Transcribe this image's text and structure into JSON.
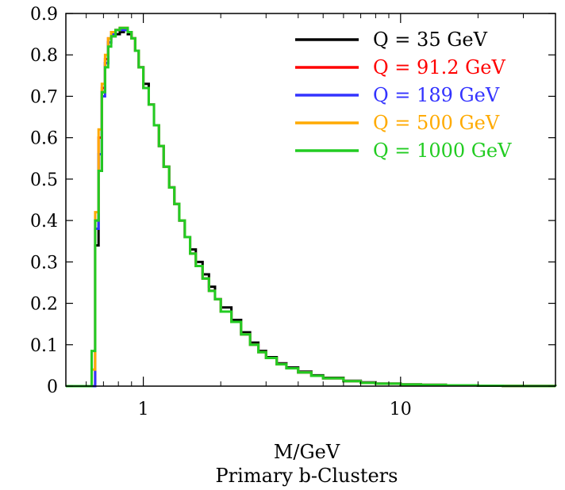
{
  "chart_data": {
    "type": "line",
    "xscale": "log",
    "xlim": [
      0.5,
      40
    ],
    "ylim": [
      0,
      0.9
    ],
    "xlabel": "M/GeV",
    "subtitle": "Primary b-Clusters",
    "x_ticks": [
      {
        "value": 1,
        "label": "1"
      },
      {
        "value": 10,
        "label": "10"
      }
    ],
    "y_ticks": [
      {
        "value": 0,
        "label": "0"
      },
      {
        "value": 0.1,
        "label": "0.1"
      },
      {
        "value": 0.2,
        "label": "0.2"
      },
      {
        "value": 0.3,
        "label": "0.3"
      },
      {
        "value": 0.4,
        "label": "0.4"
      },
      {
        "value": 0.5,
        "label": "0.5"
      },
      {
        "value": 0.6,
        "label": "0.6"
      },
      {
        "value": 0.7,
        "label": "0.7"
      },
      {
        "value": 0.8,
        "label": "0.8"
      },
      {
        "value": 0.9,
        "label": "0.9"
      }
    ],
    "grid": false,
    "legend_position": "top-right",
    "x": [
      0.5,
      0.6,
      0.63,
      0.65,
      0.67,
      0.69,
      0.71,
      0.73,
      0.75,
      0.78,
      0.81,
      0.84,
      0.87,
      0.9,
      0.93,
      0.96,
      1.0,
      1.05,
      1.1,
      1.15,
      1.2,
      1.26,
      1.32,
      1.38,
      1.45,
      1.52,
      1.6,
      1.7,
      1.8,
      1.9,
      2.0,
      2.2,
      2.4,
      2.6,
      2.8,
      3.0,
      3.3,
      3.6,
      4.0,
      4.5,
      5.0,
      6.0,
      7.0,
      8.0,
      10.0,
      12.0,
      15.0,
      20.0,
      25.0,
      30.0,
      40.0
    ],
    "series": [
      {
        "name": "Q = 35 GeV",
        "color": "#000000",
        "values": [
          0,
          0,
          0,
          0.34,
          0.52,
          0.71,
          0.78,
          0.83,
          0.845,
          0.85,
          0.855,
          0.86,
          0.85,
          0.84,
          0.81,
          0.77,
          0.73,
          0.68,
          0.63,
          0.58,
          0.53,
          0.48,
          0.44,
          0.4,
          0.36,
          0.33,
          0.3,
          0.27,
          0.24,
          0.21,
          0.19,
          0.16,
          0.13,
          0.105,
          0.085,
          0.07,
          0.055,
          0.045,
          0.035,
          0.026,
          0.02,
          0.013,
          0.009,
          0.006,
          0.004,
          0.003,
          0.002,
          0.001,
          0.0005,
          0.0002,
          0
        ]
      },
      {
        "name": "Q = 91.2 GeV",
        "color": "#ff0000",
        "values": [
          0,
          0,
          0,
          0.4,
          0.6,
          0.72,
          0.79,
          0.84,
          0.855,
          0.86,
          0.865,
          0.865,
          0.855,
          0.84,
          0.81,
          0.77,
          0.72,
          0.68,
          0.63,
          0.58,
          0.53,
          0.48,
          0.44,
          0.4,
          0.36,
          0.32,
          0.29,
          0.26,
          0.23,
          0.21,
          0.18,
          0.155,
          0.125,
          0.1,
          0.082,
          0.068,
          0.053,
          0.043,
          0.033,
          0.025,
          0.019,
          0.012,
          0.008,
          0.006,
          0.004,
          0.003,
          0.002,
          0.001,
          0.0005,
          0.0002,
          0
        ]
      },
      {
        "name": "Q = 189 GeV",
        "color": "#3333ff",
        "values": [
          0,
          0,
          0,
          0.38,
          0.56,
          0.7,
          0.78,
          0.83,
          0.85,
          0.86,
          0.86,
          0.86,
          0.855,
          0.84,
          0.81,
          0.77,
          0.72,
          0.68,
          0.63,
          0.58,
          0.53,
          0.48,
          0.44,
          0.4,
          0.36,
          0.32,
          0.29,
          0.26,
          0.23,
          0.21,
          0.18,
          0.155,
          0.125,
          0.1,
          0.082,
          0.068,
          0.053,
          0.043,
          0.033,
          0.025,
          0.019,
          0.012,
          0.008,
          0.006,
          0.004,
          0.003,
          0.002,
          0.001,
          0.0005,
          0.0002,
          0
        ]
      },
      {
        "name": "Q = 500 GeV",
        "color": "#ffaa00",
        "values": [
          0,
          0,
          0.04,
          0.42,
          0.62,
          0.73,
          0.8,
          0.84,
          0.855,
          0.86,
          0.865,
          0.865,
          0.855,
          0.84,
          0.81,
          0.77,
          0.72,
          0.68,
          0.63,
          0.58,
          0.53,
          0.48,
          0.44,
          0.4,
          0.36,
          0.32,
          0.29,
          0.26,
          0.23,
          0.21,
          0.18,
          0.155,
          0.125,
          0.1,
          0.082,
          0.068,
          0.053,
          0.043,
          0.033,
          0.025,
          0.019,
          0.012,
          0.008,
          0.006,
          0.004,
          0.003,
          0.002,
          0.001,
          0.0005,
          0.0002,
          0
        ]
      },
      {
        "name": "Q = 1000 GeV",
        "color": "#22cc22",
        "values": [
          0,
          0,
          0.085,
          0.4,
          0.52,
          0.71,
          0.77,
          0.82,
          0.845,
          0.86,
          0.865,
          0.865,
          0.855,
          0.84,
          0.81,
          0.77,
          0.72,
          0.68,
          0.63,
          0.58,
          0.53,
          0.48,
          0.44,
          0.4,
          0.36,
          0.32,
          0.29,
          0.26,
          0.23,
          0.21,
          0.18,
          0.155,
          0.125,
          0.1,
          0.082,
          0.068,
          0.053,
          0.043,
          0.033,
          0.025,
          0.019,
          0.012,
          0.008,
          0.006,
          0.004,
          0.003,
          0.002,
          0.001,
          0.0005,
          0.0002,
          0
        ]
      }
    ]
  }
}
